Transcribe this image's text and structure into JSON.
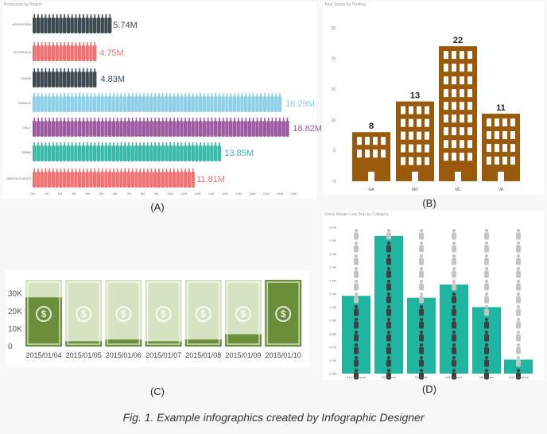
{
  "colors": {
    "wine_dark": "#3d4a4f",
    "wine_red": "#f07272",
    "wine_blue": "#8ed0e8",
    "wine_purple": "#9c5aa0",
    "wine_teal": "#3ab9a8",
    "building": "#9a5a0b",
    "money_green": "#6b8e3a",
    "money_light": "#d6e3c2",
    "teal": "#20b5a0",
    "grey_icon": "#c4c4c4",
    "dark_icon": "#404040"
  },
  "panels": {
    "a": {
      "label": "(A)",
      "title": "Production by Region"
    },
    "b": {
      "label": "(B)",
      "title": "Total Stores by Territory"
    },
    "c": {
      "label": "(C)"
    },
    "d": {
      "label": "(D)",
      "title": "Gross Margin Last Year by Category"
    }
  },
  "caption": "Fig. 1. Example infographics created by Infographic Designer",
  "chart_data": [
    {
      "type": "bar",
      "orientation": "horizontal",
      "mark": "wine-bottle",
      "title": "Production by Region",
      "categories": [
        "ARGENTINA",
        "AUSTRALIA",
        "CHINA",
        "FRANCE",
        "ITALY",
        "SPAIN",
        "UNITED STATES"
      ],
      "values": [
        5.74,
        4.75,
        4.83,
        18.29,
        18.82,
        13.85,
        11.81
      ],
      "value_labels": [
        "5.74M",
        "4.75M",
        "4.83M",
        "18.29M",
        "18.82M",
        "13.85M",
        "11.81M"
      ],
      "colors": [
        "#3d4a4f",
        "#f07272",
        "#3d4a4f",
        "#8ed0e8",
        "#9c5aa0",
        "#3ab9a8",
        "#f07272"
      ],
      "xticks": [
        "0M",
        "1M",
        "2M",
        "3M",
        "4M",
        "5M",
        "6M",
        "7M",
        "8M",
        "9M",
        "10M",
        "11M",
        "12M",
        "13M",
        "14M",
        "15M",
        "16M",
        "17M",
        "18M",
        "19M"
      ],
      "xlim": [
        0,
        19.5
      ]
    },
    {
      "type": "bar",
      "mark": "building",
      "title": "Total Stores by Territory",
      "categories": [
        "GA",
        "MD",
        "NC",
        "VA"
      ],
      "values": [
        8,
        13,
        22,
        11
      ],
      "yticks": [
        "0",
        "5",
        "10",
        "15",
        "20",
        "25"
      ],
      "ylim": [
        0,
        27
      ]
    },
    {
      "type": "bar",
      "mark": "banknote",
      "categories": [
        "2015/01/04",
        "2015/01/05",
        "2015/01/06",
        "2015/01/07",
        "2015/01/08",
        "2015/01/09",
        "2015/01/10"
      ],
      "values": [
        28,
        3,
        4,
        3,
        4,
        7,
        38
      ],
      "yticks": [
        "0",
        "10K",
        "20K",
        "30K"
      ],
      "ylim": [
        0,
        38
      ]
    },
    {
      "type": "bar",
      "mark": "icon-stack",
      "title": "Gross Margin Last Year by Category",
      "categories": [
        "010-Womens",
        "020-Mens",
        "030-Kids",
        "040-Juniors",
        "080-Home",
        "100-Groceries"
      ],
      "values": [
        1.17,
        2.07,
        1.14,
        1.34,
        1.0,
        0.21
      ],
      "yticks": [
        "0.0M",
        "0.2M",
        "0.4M",
        "0.6M",
        "0.8M",
        "1.0M",
        "1.2M",
        "1.4M",
        "1.6M",
        "1.8M",
        "2.0M",
        "2.2M"
      ],
      "ylim": [
        0,
        2.2
      ]
    }
  ]
}
